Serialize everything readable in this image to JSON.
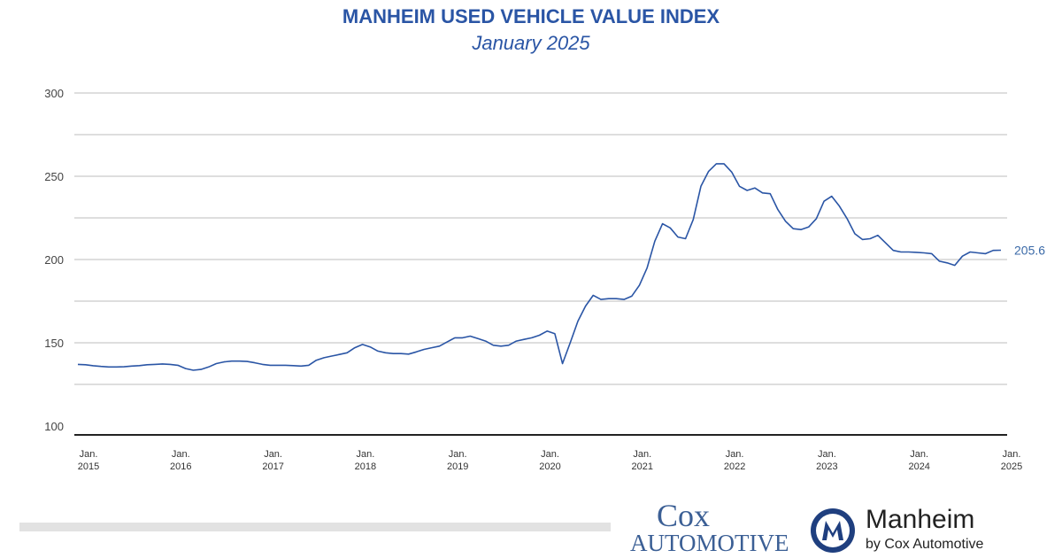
{
  "chart_data": {
    "type": "line",
    "title": "MANHEIM USED VEHICLE VALUE INDEX",
    "subtitle": "January 2025",
    "ylim": [
      100,
      300
    ],
    "yticks": [
      100,
      150,
      200,
      250,
      300
    ],
    "xticks": [
      [
        "Jan.",
        "2015"
      ],
      [
        "Jan.",
        "2016"
      ],
      [
        "Jan.",
        "2017"
      ],
      [
        "Jan.",
        "2018"
      ],
      [
        "Jan.",
        "2019"
      ],
      [
        "Jan.",
        "2020"
      ],
      [
        "Jan.",
        "2021"
      ],
      [
        "Jan.",
        "2022"
      ],
      [
        "Jan.",
        "2023"
      ],
      [
        "Jan.",
        "2024"
      ],
      [
        "Jan.",
        "2025"
      ]
    ],
    "x_start": "2015-01",
    "x_end": "2025-01",
    "frequency": "monthly",
    "grid": true,
    "line_color": "#2a55a5",
    "end_label": "205.6",
    "values": [
      137,
      136.8,
      136.2,
      135.8,
      135.5,
      135.5,
      135.6,
      136,
      136.3,
      136.8,
      137,
      137.3,
      137,
      136.5,
      134.5,
      133.5,
      134,
      135.5,
      137.5,
      138.5,
      139,
      139,
      138.8,
      138,
      137,
      136.5,
      136.5,
      136.5,
      136.3,
      136,
      136.5,
      139.5,
      141,
      142,
      143,
      144,
      147,
      149,
      147.5,
      145,
      144,
      143.5,
      143.5,
      143.2,
      144.5,
      146,
      147,
      148,
      150.5,
      153,
      153,
      154,
      152.5,
      151,
      148.5,
      148,
      148.5,
      151,
      152,
      153,
      154.5,
      157,
      155.5,
      137.5,
      150,
      163,
      172,
      178.5,
      176,
      176.5,
      176.5,
      176,
      178,
      184.5,
      195,
      211,
      221.5,
      219,
      213.5,
      212.5,
      224,
      244,
      253,
      257.5,
      257.5,
      252.5,
      244,
      241.5,
      243,
      240,
      239.5,
      230,
      223,
      218.5,
      218,
      219.5,
      224.5,
      235,
      238,
      232,
      224.5,
      215.5,
      212,
      212.5,
      214.5,
      210,
      205.5,
      204.5,
      204.5,
      204.3,
      204,
      203.5,
      199,
      198,
      196.5,
      202,
      204.5,
      204,
      203.5,
      205.5,
      205.6
    ]
  },
  "logos": {
    "cox_line1": "Cox",
    "cox_line2": "Automotive",
    "manheim": "Manheim",
    "manheim_sub": "by Cox Automotive"
  }
}
